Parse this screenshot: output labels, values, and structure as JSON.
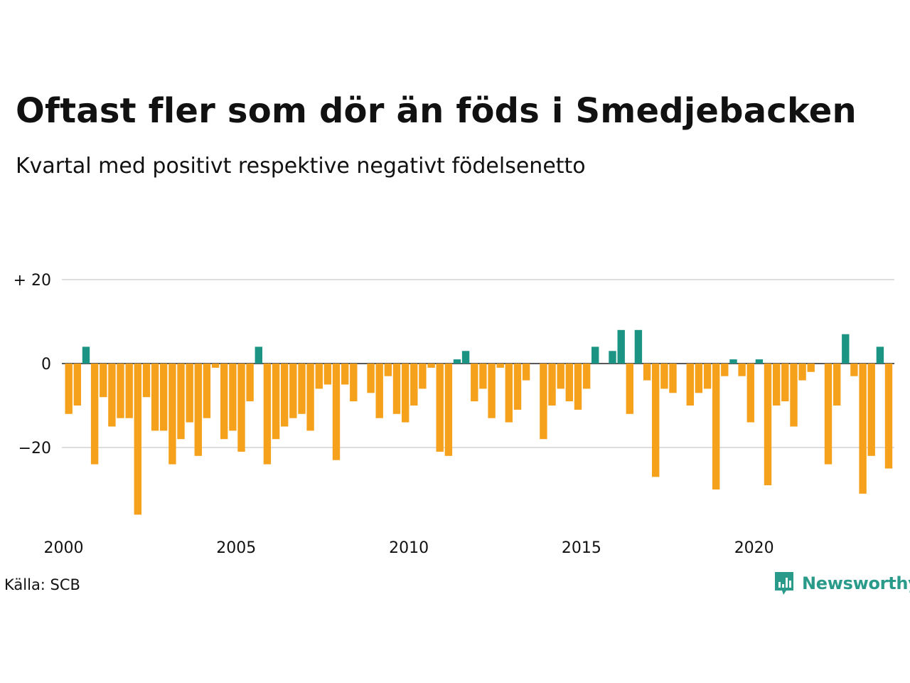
{
  "title": "Oftast fler som dör än föds i Smedjebacken",
  "subtitle": "Kvartal med positivt respektive negativt födelsenetto",
  "source": "Källa: SCB",
  "brand": "Newsworthy",
  "colors": {
    "positive": "#1b9484",
    "negative": "#f5a11c",
    "grid": "#dddddd",
    "zero": "#222222",
    "brand": "#2a9b8a"
  },
  "chart_data": {
    "type": "bar",
    "x_start": "2000 Q1",
    "xlim": [
      2000,
      2024
    ],
    "ylim": [
      -37,
      22
    ],
    "y_ticks": [
      {
        "value": 20,
        "label": "+ 20"
      },
      {
        "value": 0,
        "label": "0"
      },
      {
        "value": -20,
        "label": "−20"
      }
    ],
    "x_ticks": [
      {
        "year": 2000,
        "label": "2000"
      },
      {
        "year": 2005,
        "label": "2005"
      },
      {
        "year": 2010,
        "label": "2010"
      },
      {
        "year": 2015,
        "label": "2015"
      },
      {
        "year": 2020,
        "label": "2020"
      }
    ],
    "grid": "horizontal",
    "values": [
      -12,
      -10,
      4,
      -24,
      -8,
      -15,
      -13,
      -13,
      -36,
      -8,
      -16,
      -16,
      -24,
      -18,
      -14,
      -22,
      -13,
      -1,
      -18,
      -16,
      -21,
      -9,
      4,
      -24,
      -18,
      -15,
      -13,
      -12,
      -16,
      -6,
      -5,
      -23,
      -5,
      -9,
      0,
      -7,
      -13,
      -3,
      -12,
      -14,
      -10,
      -6,
      -1,
      -21,
      -22,
      1,
      3,
      -9,
      -6,
      -13,
      -1,
      -14,
      -11,
      -4,
      0,
      -18,
      -10,
      -6,
      -9,
      -11,
      -6,
      4,
      0,
      3,
      8,
      -12,
      8,
      -4,
      -27,
      -6,
      -7,
      0,
      -10,
      -7,
      -6,
      -30,
      -3,
      1,
      -3,
      -14,
      1,
      -29,
      -10,
      -9,
      -15,
      -4,
      -2,
      0,
      -24,
      -10,
      7,
      -3,
      -31,
      -22,
      4,
      -25
    ]
  }
}
